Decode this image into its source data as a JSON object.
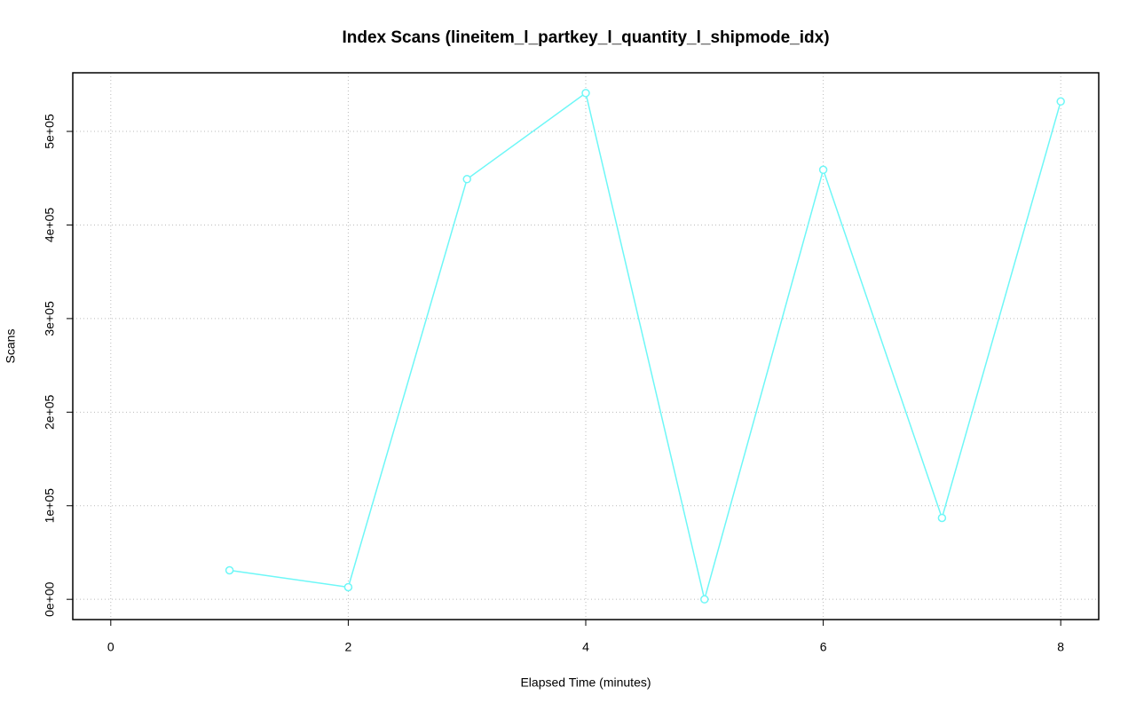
{
  "chart_data": {
    "type": "line",
    "title": "Index Scans (lineitem_l_partkey_l_quantity_l_shipmode_idx)",
    "x_label": "Elapsed Time (minutes)",
    "y_label": "Scans",
    "x": [
      1,
      2,
      3,
      4,
      5,
      6,
      7,
      8
    ],
    "series": [
      {
        "name": "Scans",
        "color": "#6ef7f7",
        "values": [
          31000,
          13000,
          449000,
          541000,
          0,
          459000,
          87000,
          532000
        ]
      }
    ],
    "xlim": [
      -0.32,
      8.32
    ],
    "ylim": [
      -21640,
      562640
    ],
    "xticks": [
      0,
      2,
      4,
      6,
      8
    ],
    "yticks": [
      {
        "value": 0,
        "label": "0e+00"
      },
      {
        "value": 100000,
        "label": "1e+05"
      },
      {
        "value": 200000,
        "label": "2e+05"
      },
      {
        "value": 300000,
        "label": "3e+05"
      },
      {
        "value": 400000,
        "label": "4e+05"
      },
      {
        "value": 500000,
        "label": "5e+05"
      }
    ],
    "grid": true
  }
}
